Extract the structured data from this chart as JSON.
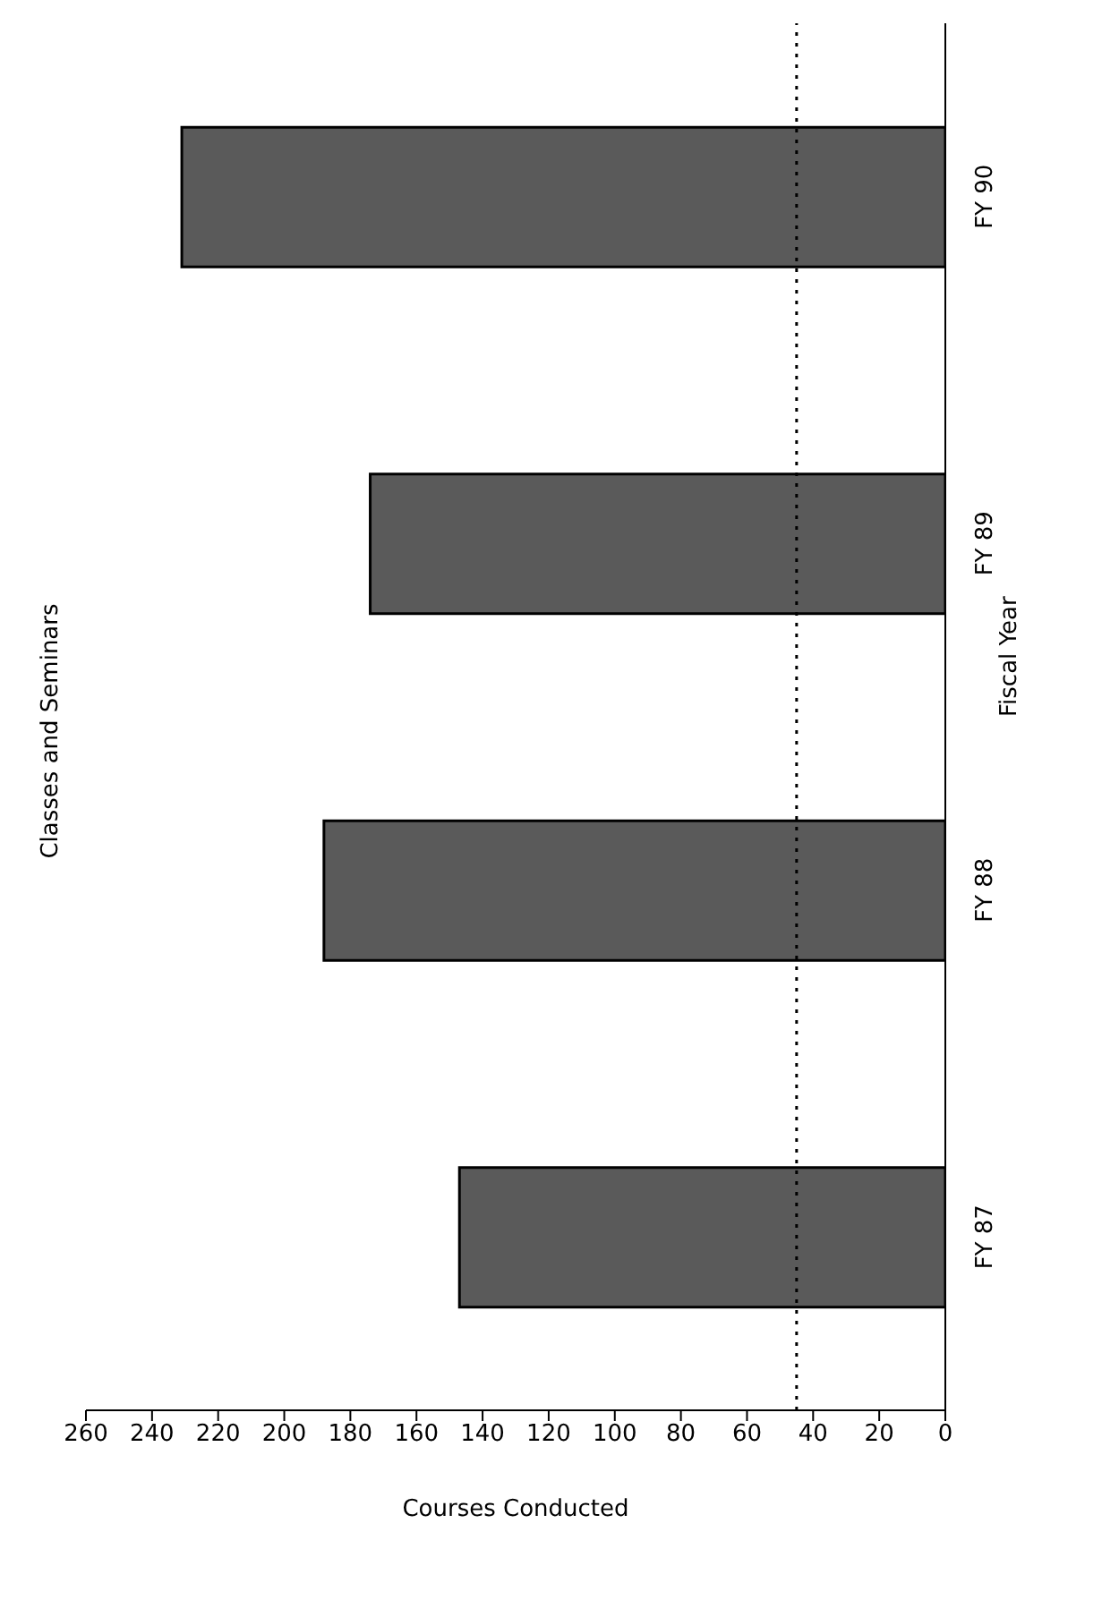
{
  "chart_data": {
    "type": "bar",
    "orientation": "horizontal",
    "title": "Classes and Seminars",
    "xlabel": "Courses Conducted",
    "ylabel": "Fiscal Year",
    "categories": [
      "FY 90",
      "FY 89",
      "FY 88",
      "FY 87"
    ],
    "values": [
      231,
      174,
      188,
      147
    ],
    "color": "#5a5a5a",
    "xlim": [
      260,
      0
    ],
    "xticks": [
      0,
      20,
      40,
      60,
      80,
      100,
      120,
      140,
      160,
      180,
      200,
      220,
      240,
      260
    ],
    "ref_lines": [
      {
        "axis": "x",
        "value": 45,
        "line_style": "dotted",
        "color": "#000000"
      }
    ],
    "grid": false,
    "legend": false
  }
}
